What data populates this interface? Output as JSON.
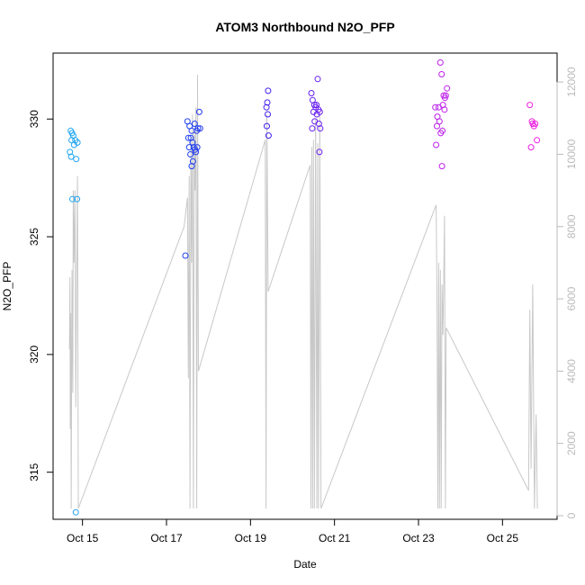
{
  "chart_data": {
    "type": "scatter",
    "title": "ATOM3 Northbound N2O_PFP",
    "xlabel": "Date",
    "ylabel": "N2O_PFP",
    "x_ticks": [
      "Oct 15",
      "Oct 17",
      "Oct 19",
      "Oct 21",
      "Oct 23",
      "Oct 25"
    ],
    "x_tick_days": [
      15,
      17,
      19,
      21,
      23,
      25
    ],
    "xlim": [
      14.3,
      26.3
    ],
    "ylim": [
      313.0,
      332.8
    ],
    "y_ticks": [
      315,
      320,
      325,
      330
    ],
    "y2lim": [
      -100,
      12800
    ],
    "y2_ticks": [
      0,
      2000,
      4000,
      6000,
      8000,
      10000,
      12000
    ],
    "grid": false,
    "legend": "none",
    "colors": {
      "axis": "#000000",
      "secondary": "#bbbbbb",
      "line": "#c8c8c8",
      "point_gradient": [
        "#20a8f0",
        "#2020f0",
        "#a020f0",
        "#f020e0"
      ]
    },
    "series": [
      {
        "axis": "left",
        "points": [
          [
            14.72,
            329.5
          ],
          [
            14.75,
            329.4
          ],
          [
            14.78,
            329.3
          ],
          [
            14.74,
            329.1
          ],
          [
            14.8,
            328.9
          ],
          [
            14.7,
            328.6
          ],
          [
            14.73,
            328.4
          ],
          [
            14.85,
            328.3
          ],
          [
            14.88,
            329.0
          ],
          [
            14.83,
            329.1
          ],
          [
            14.76,
            326.6
          ],
          [
            14.87,
            326.6
          ],
          [
            14.84,
            313.3
          ],
          [
            17.45,
            324.2
          ],
          [
            17.5,
            329.9
          ],
          [
            17.55,
            329.7
          ],
          [
            17.58,
            329.2
          ],
          [
            17.6,
            329.5
          ],
          [
            17.52,
            329.2
          ],
          [
            17.62,
            329.0
          ],
          [
            17.65,
            328.8
          ],
          [
            17.57,
            328.5
          ],
          [
            17.68,
            328.7
          ],
          [
            17.7,
            328.6
          ],
          [
            17.63,
            328.2
          ],
          [
            17.6,
            328.0
          ],
          [
            17.72,
            329.5
          ],
          [
            17.75,
            329.6
          ],
          [
            17.78,
            330.3
          ],
          [
            17.8,
            329.6
          ],
          [
            17.67,
            329.8
          ],
          [
            17.54,
            328.8
          ],
          [
            17.73,
            328.8
          ],
          [
            19.38,
            330.5
          ],
          [
            19.4,
            330.7
          ],
          [
            19.42,
            331.2
          ],
          [
            19.41,
            330.2
          ],
          [
            19.39,
            329.7
          ],
          [
            19.43,
            329.3
          ],
          [
            20.45,
            331.1
          ],
          [
            20.48,
            330.8
          ],
          [
            20.52,
            330.6
          ],
          [
            20.55,
            330.5
          ],
          [
            20.57,
            330.6
          ],
          [
            20.6,
            331.7
          ],
          [
            20.62,
            330.4
          ],
          [
            20.5,
            330.3
          ],
          [
            20.58,
            330.2
          ],
          [
            20.65,
            330.3
          ],
          [
            20.47,
            329.6
          ],
          [
            20.53,
            329.9
          ],
          [
            20.63,
            329.8
          ],
          [
            20.66,
            329.6
          ],
          [
            20.64,
            328.6
          ]
        ]
      },
      {
        "axis": "left",
        "points": [
          [
            23.4,
            330.5
          ],
          [
            23.45,
            330.1
          ],
          [
            23.48,
            330.5
          ],
          [
            23.52,
            332.4
          ],
          [
            23.55,
            331.9
          ],
          [
            23.58,
            330.6
          ],
          [
            23.6,
            331.0
          ],
          [
            23.62,
            330.4
          ],
          [
            23.65,
            331.0
          ],
          [
            23.68,
            331.3
          ],
          [
            23.5,
            329.9
          ],
          [
            23.44,
            329.7
          ],
          [
            23.57,
            329.5
          ],
          [
            23.53,
            329.4
          ],
          [
            23.42,
            328.9
          ],
          [
            23.56,
            328.0
          ],
          [
            23.63,
            330.9
          ],
          [
            25.65,
            330.6
          ],
          [
            25.7,
            329.9
          ],
          [
            25.72,
            329.8
          ],
          [
            25.75,
            329.7
          ],
          [
            25.78,
            329.8
          ],
          [
            25.68,
            328.8
          ],
          [
            25.82,
            329.1
          ]
        ]
      },
      {
        "axis": "right",
        "points": [
          [
            14.69,
            4600
          ],
          [
            14.7,
            6600
          ],
          [
            14.71,
            2400
          ],
          [
            14.72,
            5600
          ],
          [
            14.73,
            200
          ],
          [
            14.75,
            6800
          ],
          [
            14.77,
            3400
          ],
          [
            14.78,
            9000
          ],
          [
            14.8,
            7000
          ],
          [
            14.82,
            9000
          ],
          [
            14.84,
            3000
          ],
          [
            14.86,
            6500
          ],
          [
            14.88,
            9400
          ],
          [
            14.9,
            200
          ],
          [
            17.42,
            8000
          ],
          [
            17.5,
            8800
          ],
          [
            17.52,
            3800
          ],
          [
            17.54,
            9400
          ],
          [
            17.56,
            200
          ],
          [
            17.58,
            10400
          ],
          [
            17.6,
            7000
          ],
          [
            17.62,
            11100
          ],
          [
            17.64,
            200
          ],
          [
            17.66,
            10600
          ],
          [
            17.68,
            9000
          ],
          [
            17.7,
            11300
          ],
          [
            17.72,
            200
          ],
          [
            17.74,
            12200
          ],
          [
            17.76,
            4000
          ],
          [
            19.35,
            10400
          ],
          [
            19.37,
            200
          ],
          [
            19.39,
            11100
          ],
          [
            19.42,
            6200
          ],
          [
            20.42,
            9700
          ],
          [
            20.44,
            200
          ],
          [
            20.46,
            10200
          ],
          [
            20.48,
            200
          ],
          [
            20.5,
            10400
          ],
          [
            20.52,
            200
          ],
          [
            20.55,
            11000
          ],
          [
            20.58,
            200
          ],
          [
            20.6,
            10300
          ],
          [
            20.62,
            200
          ],
          [
            20.65,
            11100
          ],
          [
            20.68,
            200
          ],
          [
            23.42,
            8600
          ],
          [
            23.44,
            6200
          ],
          [
            23.46,
            200
          ],
          [
            23.48,
            7000
          ],
          [
            23.5,
            200
          ],
          [
            23.52,
            6800
          ],
          [
            23.54,
            200
          ],
          [
            23.56,
            6400
          ],
          [
            23.58,
            5000
          ],
          [
            23.6,
            6500
          ],
          [
            23.62,
            8300
          ],
          [
            23.64,
            200
          ],
          [
            23.66,
            5200
          ],
          [
            25.62,
            700
          ],
          [
            25.65,
            5700
          ],
          [
            25.68,
            1300
          ],
          [
            25.72,
            6400
          ],
          [
            25.76,
            200
          ],
          [
            25.8,
            2800
          ],
          [
            25.83,
            200
          ]
        ]
      }
    ]
  }
}
